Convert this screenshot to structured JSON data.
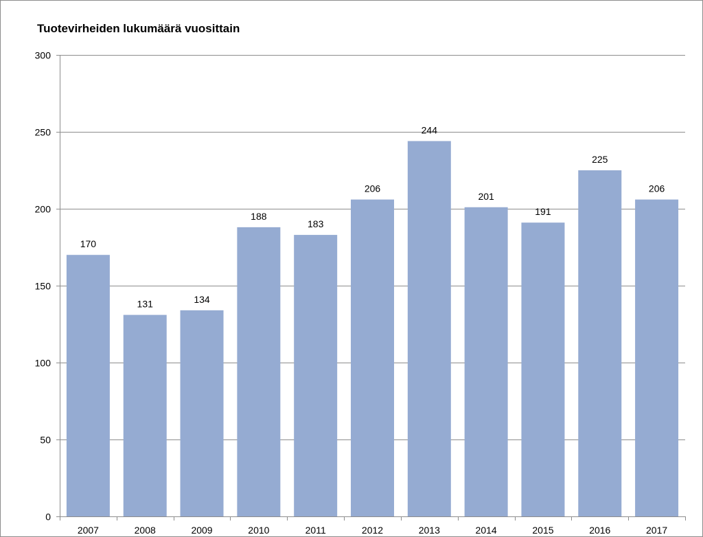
{
  "chart_data": {
    "type": "bar",
    "title": "Tuotevirheiden lukumäärä vuosittain",
    "categories": [
      "2007",
      "2008",
      "2009",
      "2010",
      "2011",
      "2012",
      "2013",
      "2014",
      "2015",
      "2016",
      "2017"
    ],
    "values": [
      170,
      131,
      134,
      188,
      183,
      206,
      244,
      201,
      191,
      225,
      206
    ],
    "data_labels": [
      "170",
      "131",
      "134",
      "188",
      "183",
      "206",
      "244",
      "201",
      "191",
      "225",
      "206"
    ],
    "yticks": [
      "0",
      "50",
      "100",
      "150",
      "200",
      "250",
      "300"
    ],
    "ylim": [
      0,
      300
    ],
    "grid": true,
    "legend": "none",
    "colors": {
      "bar": "#95abd2",
      "grid": "#8c8c8c",
      "axis": "#8c8c8c",
      "text": "#000000"
    }
  }
}
